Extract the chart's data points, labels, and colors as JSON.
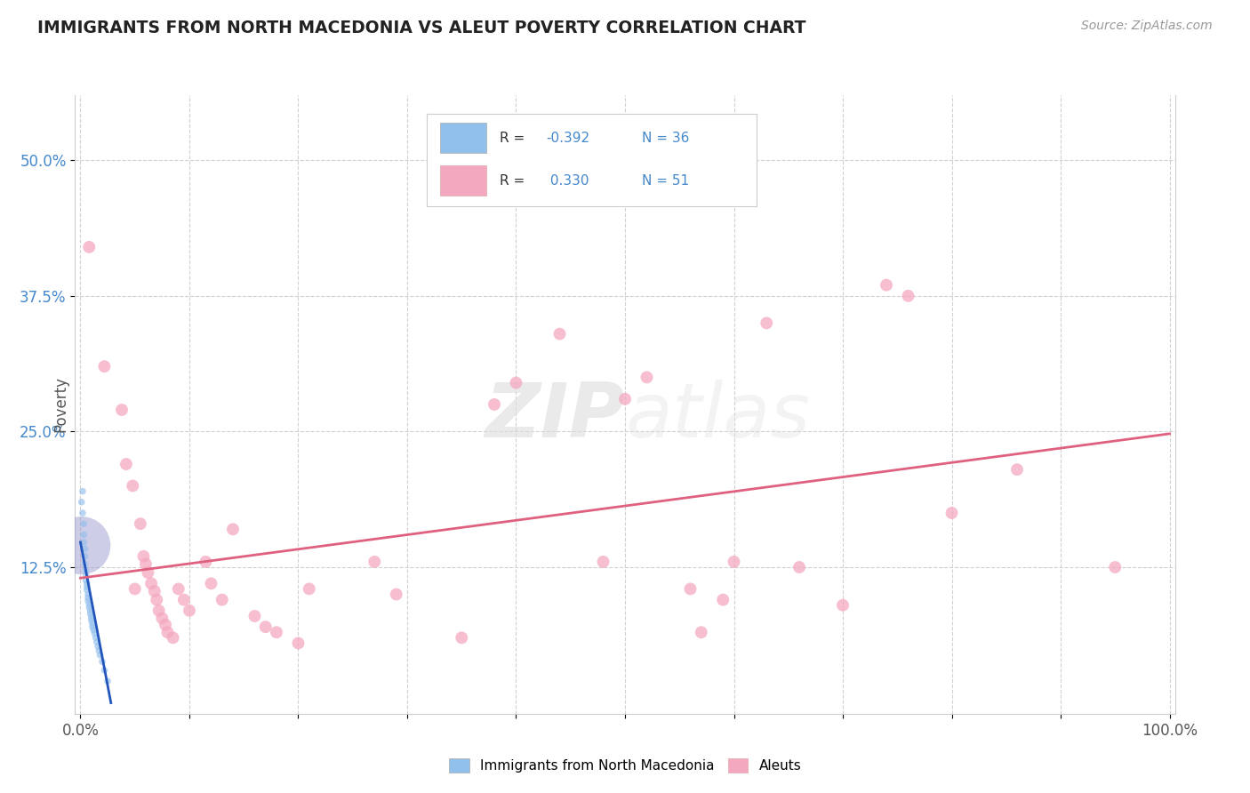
{
  "title": "IMMIGRANTS FROM NORTH MACEDONIA VS ALEUT POVERTY CORRELATION CHART",
  "source": "Source: ZipAtlas.com",
  "ylabel": "Poverty",
  "watermark_zip": "ZIP",
  "watermark_atlas": "atlas",
  "legend_label1": "Immigrants from North Macedonia",
  "legend_label2": "Aleuts",
  "r1": "-0.392",
  "n1": "36",
  "r2": "0.330",
  "n2": "51",
  "blue_color": "#92C0ED",
  "pink_color": "#F4A8C0",
  "blue_line_color": "#2255BB",
  "pink_line_color": "#E06080",
  "title_color": "#222222",
  "source_color": "#999999",
  "ytick_color": "#4488CC",
  "blue_scatter": [
    [
      0.001,
      0.185
    ],
    [
      0.002,
      0.195
    ],
    [
      0.002,
      0.175
    ],
    [
      0.003,
      0.165
    ],
    [
      0.003,
      0.155
    ],
    [
      0.003,
      0.148
    ],
    [
      0.004,
      0.142
    ],
    [
      0.004,
      0.135
    ],
    [
      0.004,
      0.128
    ],
    [
      0.005,
      0.122
    ],
    [
      0.005,
      0.118
    ],
    [
      0.005,
      0.113
    ],
    [
      0.006,
      0.11
    ],
    [
      0.006,
      0.107
    ],
    [
      0.006,
      0.104
    ],
    [
      0.007,
      0.1
    ],
    [
      0.007,
      0.097
    ],
    [
      0.007,
      0.094
    ],
    [
      0.008,
      0.091
    ],
    [
      0.008,
      0.088
    ],
    [
      0.009,
      0.085
    ],
    [
      0.009,
      0.082
    ],
    [
      0.01,
      0.079
    ],
    [
      0.01,
      0.076
    ],
    [
      0.011,
      0.073
    ],
    [
      0.011,
      0.07
    ],
    [
      0.012,
      0.067
    ],
    [
      0.013,
      0.064
    ],
    [
      0.014,
      0.06
    ],
    [
      0.015,
      0.056
    ],
    [
      0.016,
      0.052
    ],
    [
      0.017,
      0.048
    ],
    [
      0.018,
      0.044
    ],
    [
      0.02,
      0.038
    ],
    [
      0.022,
      0.03
    ],
    [
      0.025,
      0.02
    ]
  ],
  "blue_sizes": [
    30,
    30,
    30,
    30,
    30,
    30,
    30,
    30,
    30,
    30,
    30,
    30,
    30,
    30,
    30,
    30,
    30,
    30,
    30,
    30,
    30,
    30,
    30,
    30,
    30,
    30,
    30,
    30,
    30,
    30,
    30,
    30,
    30,
    30,
    30,
    30
  ],
  "blue_big_dot": [
    0.001,
    0.145
  ],
  "blue_big_size": 2200,
  "pink_scatter": [
    [
      0.008,
      0.42
    ],
    [
      0.022,
      0.31
    ],
    [
      0.038,
      0.27
    ],
    [
      0.042,
      0.22
    ],
    [
      0.048,
      0.2
    ],
    [
      0.05,
      0.105
    ],
    [
      0.055,
      0.165
    ],
    [
      0.058,
      0.135
    ],
    [
      0.06,
      0.128
    ],
    [
      0.062,
      0.12
    ],
    [
      0.065,
      0.11
    ],
    [
      0.068,
      0.103
    ],
    [
      0.07,
      0.095
    ],
    [
      0.072,
      0.085
    ],
    [
      0.075,
      0.078
    ],
    [
      0.078,
      0.072
    ],
    [
      0.08,
      0.065
    ],
    [
      0.085,
      0.06
    ],
    [
      0.09,
      0.105
    ],
    [
      0.095,
      0.095
    ],
    [
      0.1,
      0.085
    ],
    [
      0.115,
      0.13
    ],
    [
      0.12,
      0.11
    ],
    [
      0.13,
      0.095
    ],
    [
      0.14,
      0.16
    ],
    [
      0.16,
      0.08
    ],
    [
      0.17,
      0.07
    ],
    [
      0.18,
      0.065
    ],
    [
      0.2,
      0.055
    ],
    [
      0.21,
      0.105
    ],
    [
      0.27,
      0.13
    ],
    [
      0.29,
      0.1
    ],
    [
      0.35,
      0.06
    ],
    [
      0.38,
      0.275
    ],
    [
      0.4,
      0.295
    ],
    [
      0.44,
      0.34
    ],
    [
      0.48,
      0.13
    ],
    [
      0.5,
      0.28
    ],
    [
      0.52,
      0.3
    ],
    [
      0.56,
      0.105
    ],
    [
      0.57,
      0.065
    ],
    [
      0.59,
      0.095
    ],
    [
      0.6,
      0.13
    ],
    [
      0.63,
      0.35
    ],
    [
      0.66,
      0.125
    ],
    [
      0.7,
      0.09
    ],
    [
      0.74,
      0.385
    ],
    [
      0.76,
      0.375
    ],
    [
      0.8,
      0.175
    ],
    [
      0.86,
      0.215
    ],
    [
      0.95,
      0.125
    ]
  ],
  "pink_sizes": [
    100,
    100,
    100,
    100,
    100,
    100,
    100,
    100,
    100,
    100,
    100,
    100,
    100,
    100,
    100,
    100,
    100,
    100,
    100,
    100,
    100,
    100,
    100,
    100,
    100,
    100,
    100,
    100,
    100,
    100,
    100,
    100,
    100,
    100,
    100,
    100,
    100,
    100,
    100,
    100,
    100,
    100,
    100,
    100,
    100,
    100,
    100,
    100,
    100,
    100,
    100
  ],
  "xlim": [
    -0.005,
    1.005
  ],
  "ylim": [
    -0.01,
    0.56
  ],
  "blue_line_x": [
    0.0,
    0.028
  ],
  "blue_line_y": [
    0.148,
    0.0
  ],
  "pink_line_x": [
    0.0,
    1.0
  ],
  "pink_line_y": [
    0.115,
    0.248
  ],
  "bg_color": "#FFFFFF",
  "grid_color": "#CCCCCC",
  "yticks": [
    0.125,
    0.25,
    0.375,
    0.5
  ],
  "ytick_labels": [
    "12.5%",
    "25.0%",
    "37.5%",
    "50.0%"
  ],
  "xticks": [
    0.0,
    0.1,
    0.2,
    0.3,
    0.4,
    0.5,
    0.6,
    0.7,
    0.8,
    0.9,
    1.0
  ],
  "xtick_labels": [
    "0.0%",
    "",
    "",
    "",
    "",
    "",
    "",
    "",
    "",
    "",
    "100.0%"
  ]
}
